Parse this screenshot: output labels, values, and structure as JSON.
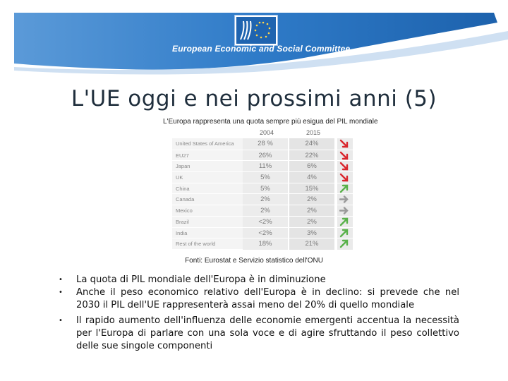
{
  "header": {
    "org_name": "European Economic and Social Committee",
    "banner_color": "#2b77c6"
  },
  "title": "L'UE oggi e nei prossimi anni (5)",
  "figure": {
    "caption": "L'Europa rappresenta una quota sempre più esigua del PIL mondiale",
    "years": [
      "2004",
      "2015"
    ],
    "rows": [
      {
        "country": "United States of America",
        "v2004": "28 %",
        "v2015": "24%",
        "trend": "down"
      },
      {
        "country": "EU27",
        "v2004": "26%",
        "v2015": "22%",
        "trend": "down"
      },
      {
        "country": "Japan",
        "v2004": "11%",
        "v2015": "6%",
        "trend": "down"
      },
      {
        "country": "UK",
        "v2004": "5%",
        "v2015": "4%",
        "trend": "down"
      },
      {
        "country": "China",
        "v2004": "5%",
        "v2015": "15%",
        "trend": "up"
      },
      {
        "country": "Canada",
        "v2004": "2%",
        "v2015": "2%",
        "trend": "flat"
      },
      {
        "country": "Mexico",
        "v2004": "2%",
        "v2015": "2%",
        "trend": "flat"
      },
      {
        "country": "Brazil",
        "v2004": "<2%",
        "v2015": "2%",
        "trend": "up"
      },
      {
        "country": "India",
        "v2004": "<2%",
        "v2015": "3%",
        "trend": "up"
      },
      {
        "country": "Rest of the world",
        "v2004": "18%",
        "v2015": "21%",
        "trend": "up"
      }
    ],
    "trend_colors": {
      "down": "#d9272e",
      "up": "#59b14a",
      "flat": "#9a9a9a"
    },
    "sources": "Fonti: Eurostat e Servizio statistico dell'ONU"
  },
  "bullets": [
    "La quota di PIL mondiale dell'Europa è in diminuzione",
    "Anche il peso economico relativo dell'Europa è in declino: si prevede che nel 2030 il PIL dell'UE rappresenterà assai meno del 20% di quello mondiale",
    "Il rapido aumento dell'influenza delle economie emergenti accentua la necessità per l'Europa di parlare con una sola voce e di agire sfruttando il peso collettivo delle sue singole componenti"
  ]
}
